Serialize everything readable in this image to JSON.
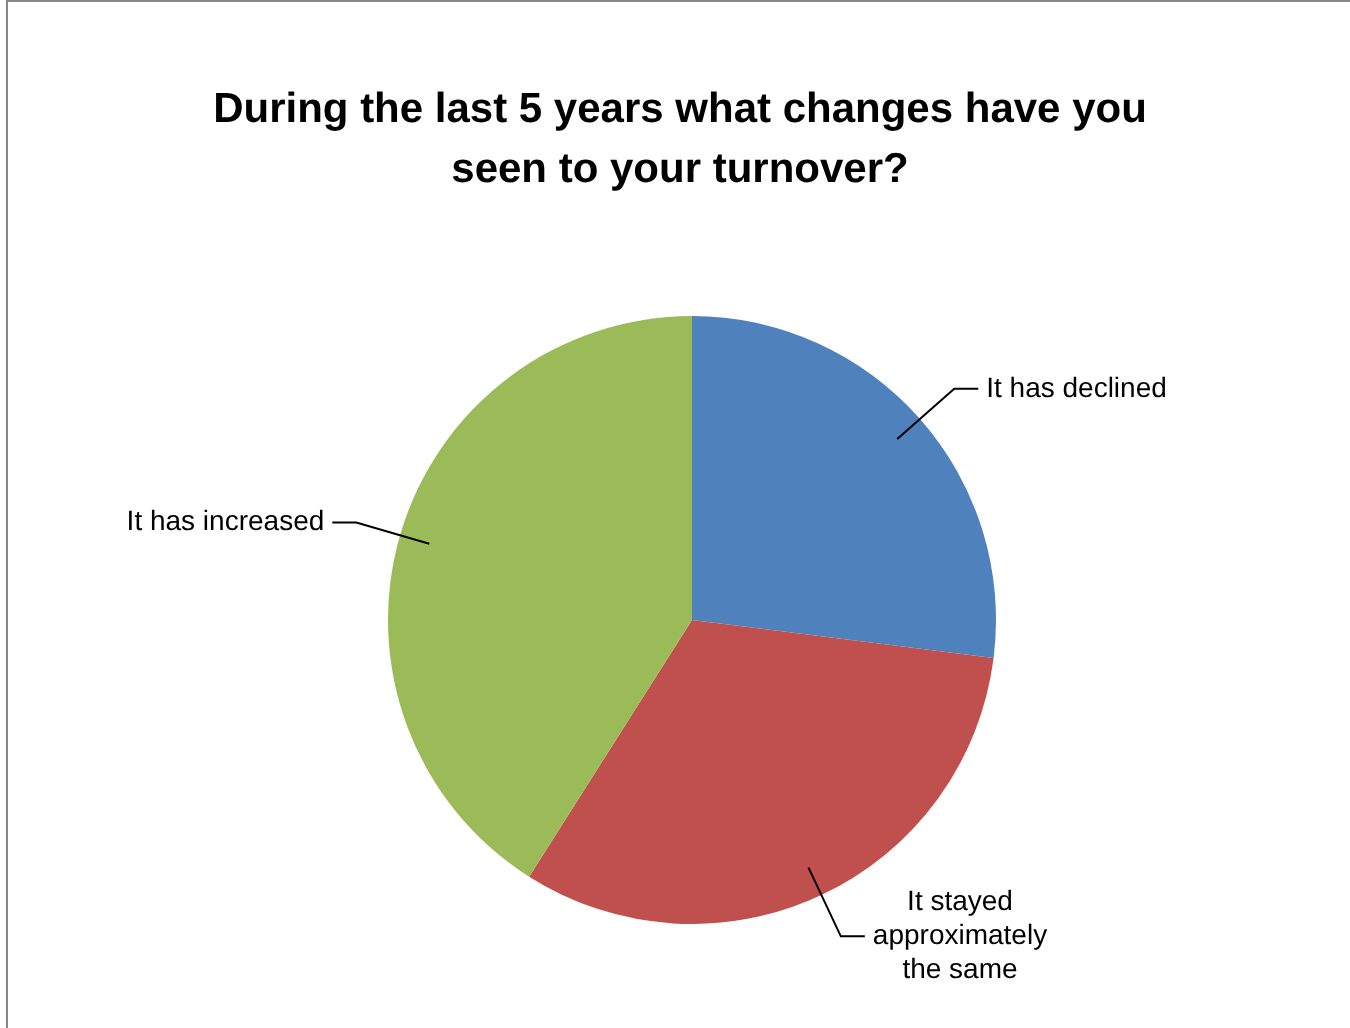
{
  "chart_data": {
    "type": "pie",
    "title": "During the last 5 years what changes have you seen to your turnover?",
    "categories": [
      "It has declined",
      "It stayed approximately the same",
      "It has increased"
    ],
    "values": [
      27,
      32,
      41
    ],
    "colors": [
      "#4f81bd",
      "#c0504d",
      "#9bbb59"
    ],
    "legend": false
  }
}
